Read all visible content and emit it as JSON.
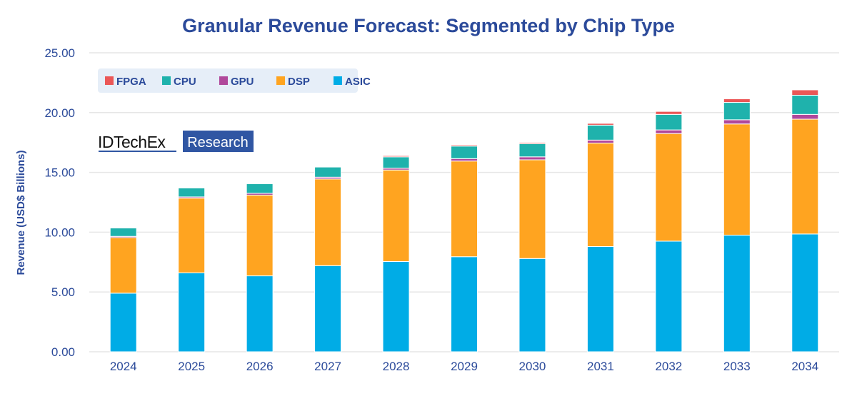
{
  "chart_data": {
    "type": "bar",
    "stacked": true,
    "title": "Granular Revenue Forecast: Segmented by Chip Type",
    "xlabel": "",
    "ylabel": "Revenue (USD$ Billions)",
    "ylim": [
      0,
      25
    ],
    "yticks": [
      "0.00",
      "5.00",
      "10.00",
      "15.00",
      "20.00",
      "25.00"
    ],
    "grid": true,
    "legend_position": "top-left",
    "categories": [
      "2024",
      "2025",
      "2026",
      "2027",
      "2028",
      "2029",
      "2030",
      "2031",
      "2032",
      "2033",
      "2034"
    ],
    "series": [
      {
        "name": "ASIC",
        "color": "#00ACE6",
        "values": [
          4.9,
          6.6,
          6.35,
          7.2,
          7.55,
          7.95,
          7.8,
          8.8,
          9.25,
          9.75,
          9.85
        ]
      },
      {
        "name": "DSP",
        "color": "#FFA420",
        "values": [
          4.65,
          6.25,
          6.75,
          7.25,
          7.65,
          8.0,
          8.25,
          8.65,
          9.0,
          9.3,
          9.6
        ]
      },
      {
        "name": "GPU",
        "color": "#B0489B",
        "values": [
          0.1,
          0.1,
          0.15,
          0.15,
          0.15,
          0.2,
          0.25,
          0.25,
          0.3,
          0.35,
          0.4
        ]
      },
      {
        "name": "CPU",
        "color": "#1FB2AC",
        "values": [
          0.7,
          0.75,
          0.8,
          0.85,
          0.95,
          1.05,
          1.1,
          1.25,
          1.3,
          1.45,
          1.6
        ]
      },
      {
        "name": "FPGA",
        "color": "#EB5757",
        "values": [
          0.05,
          0.05,
          0.05,
          0.05,
          0.1,
          0.1,
          0.1,
          0.15,
          0.25,
          0.3,
          0.45
        ]
      }
    ],
    "legend_order": [
      "FPGA",
      "CPU",
      "GPU",
      "DSP",
      "ASIC"
    ]
  },
  "logo": {
    "brand": "IDTechEx",
    "tag": "Research"
  },
  "colors": {
    "title": "#2B4A9A",
    "axis_text": "#2B4A9A",
    "legend_bg": "#E6EEF8",
    "logo_tag_bg": "#3056A3"
  }
}
